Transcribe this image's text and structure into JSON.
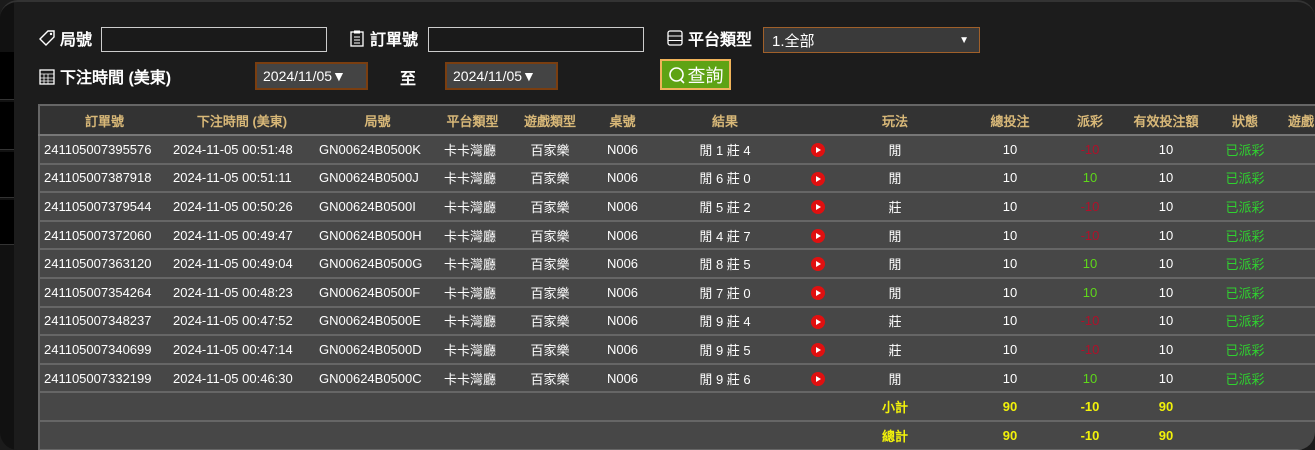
{
  "filters": {
    "round_label": "局號",
    "round_value": "",
    "order_label": "訂單號",
    "order_value": "",
    "platform_label": "平台類型",
    "platform_value": "1.全部",
    "time_label": "下注時間 (美東)",
    "date_from": "2024/11/05▼",
    "to_label": "至",
    "date_to": "2024/11/05▼",
    "query_button": "查詢"
  },
  "table": {
    "headers": [
      "訂單號",
      "下注時間 (美東)",
      "局號",
      "平台類型",
      "遊戲類型",
      "桌號",
      "結果",
      "",
      "玩法",
      "總投注",
      "派彩",
      "有效投注額",
      "狀態",
      "遊戲"
    ],
    "rows": [
      [
        "241105007395576",
        "2024-11-05 00:51:48",
        "GN00624B0500K",
        "卡卡灣廳",
        "百家樂",
        "N006",
        "閒 1 莊 4",
        "閒",
        "10",
        "-10",
        "10",
        "已派彩"
      ],
      [
        "241105007387918",
        "2024-11-05 00:51:11",
        "GN00624B0500J",
        "卡卡灣廳",
        "百家樂",
        "N006",
        "閒 6 莊 0",
        "閒",
        "10",
        "10",
        "10",
        "已派彩"
      ],
      [
        "241105007379544",
        "2024-11-05 00:50:26",
        "GN00624B0500I",
        "卡卡灣廳",
        "百家樂",
        "N006",
        "閒 5 莊 2",
        "莊",
        "10",
        "-10",
        "10",
        "已派彩"
      ],
      [
        "241105007372060",
        "2024-11-05 00:49:47",
        "GN00624B0500H",
        "卡卡灣廳",
        "百家樂",
        "N006",
        "閒 4 莊 7",
        "閒",
        "10",
        "-10",
        "10",
        "已派彩"
      ],
      [
        "241105007363120",
        "2024-11-05 00:49:04",
        "GN00624B0500G",
        "卡卡灣廳",
        "百家樂",
        "N006",
        "閒 8 莊 5",
        "閒",
        "10",
        "10",
        "10",
        "已派彩"
      ],
      [
        "241105007354264",
        "2024-11-05 00:48:23",
        "GN00624B0500F",
        "卡卡灣廳",
        "百家樂",
        "N006",
        "閒 7 莊 0",
        "閒",
        "10",
        "10",
        "10",
        "已派彩"
      ],
      [
        "241105007348237",
        "2024-11-05 00:47:52",
        "GN00624B0500E",
        "卡卡灣廳",
        "百家樂",
        "N006",
        "閒 9 莊 4",
        "莊",
        "10",
        "-10",
        "10",
        "已派彩"
      ],
      [
        "241105007340699",
        "2024-11-05 00:47:14",
        "GN00624B0500D",
        "卡卡灣廳",
        "百家樂",
        "N006",
        "閒 9 莊 5",
        "莊",
        "10",
        "-10",
        "10",
        "已派彩"
      ],
      [
        "241105007332199",
        "2024-11-05 00:46:30",
        "GN00624B0500C",
        "卡卡灣廳",
        "百家樂",
        "N006",
        "閒 9 莊 6",
        "閒",
        "10",
        "10",
        "10",
        "已派彩"
      ]
    ],
    "subtotal": {
      "label": "小計",
      "bet": "90",
      "payout": "-10",
      "valid": "90"
    },
    "total": {
      "label": "總計",
      "bet": "90",
      "payout": "-10",
      "valid": "90"
    }
  },
  "colors": {
    "negative": "#b0102a",
    "positive": "#5ed81a",
    "status": "#2fd22f",
    "summary": "#f2f20a",
    "header": "#d8b878"
  }
}
